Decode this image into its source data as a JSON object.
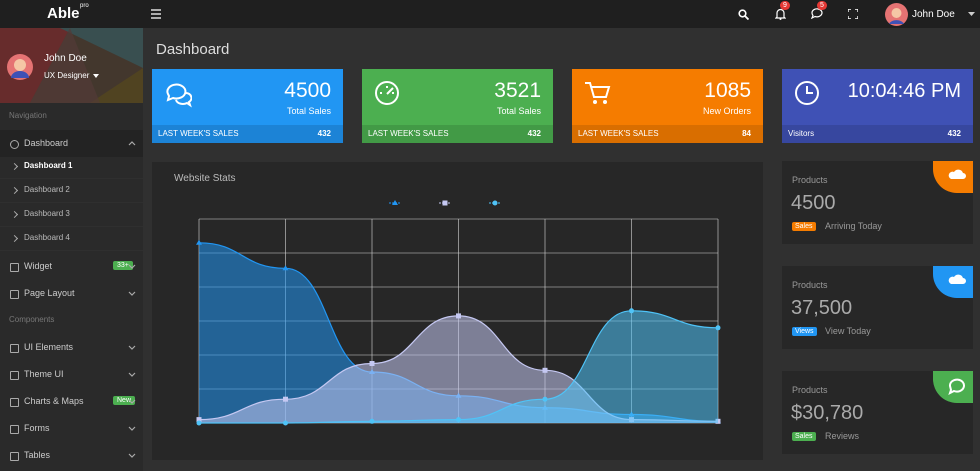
{
  "header": {
    "logo": "Able",
    "logo_sup": "pro",
    "bell_badge": 9,
    "chat_badge": 5,
    "user": "John Doe"
  },
  "sidebar": {
    "profile_name": "John Doe",
    "profile_role": "UX Designer",
    "sections": [
      {
        "title": "Navigation",
        "items": [
          {
            "label": "Dashboard",
            "children": [
              "Dashboard 1",
              "Dashboard 2",
              "Dashboard 3",
              "Dashboard 4"
            ]
          },
          {
            "label": "Widget",
            "badge": "33+"
          },
          {
            "label": "Page Layout"
          }
        ]
      },
      {
        "title": "Components",
        "items": [
          {
            "label": "UI Elements"
          },
          {
            "label": "Theme UI"
          },
          {
            "label": "Charts & Maps",
            "badge": "New"
          },
          {
            "label": "Forms"
          },
          {
            "label": "Tables"
          }
        ]
      }
    ]
  },
  "page_title": "Dashboard",
  "stat_cards": [
    {
      "value": 4500,
      "label": "Total Sales",
      "footer": "LAST WEEK'S SALES",
      "footer_value": 432,
      "color": "#2196f3",
      "footer_color": "#1c83d6"
    },
    {
      "value": 3521,
      "label": "Total Sales",
      "footer": "LAST WEEK'S SALES",
      "footer_value": 432,
      "color": "#4caf50",
      "footer_color": "#429a46"
    },
    {
      "value": 1085,
      "label": "New Orders",
      "footer": "LAST WEEK'S SALES",
      "footer_value": 84,
      "color": "#f57c00",
      "footer_color": "#d96e00"
    },
    {
      "value": "10:04:46 PM",
      "footer": "Visitors",
      "footer_value": 432,
      "color": "#3f51b5",
      "footer_color": "#37479f"
    }
  ],
  "chart_data": {
    "type": "area",
    "title": "Website Stats",
    "categories": [
      null,
      null,
      null,
      null,
      null,
      null,
      null
    ],
    "ylim": [
      0,
      120
    ],
    "yticks": [
      0,
      20,
      40,
      60,
      80,
      100,
      120
    ],
    "grid": true,
    "series": [
      {
        "color": "#2196f3",
        "marker": "triangle",
        "values": [
          106,
          91,
          30,
          16,
          9,
          5,
          1
        ]
      },
      {
        "color": "#c5c8f2",
        "marker": "square",
        "values": [
          2,
          14,
          35,
          63,
          31,
          2,
          1
        ]
      },
      {
        "color": "#4fc3f7",
        "marker": "circle",
        "values": [
          0,
          0,
          1,
          2,
          14,
          66,
          56
        ]
      }
    ]
  },
  "product_cards": [
    {
      "label": "Products",
      "value": 4500,
      "badge": "Sales",
      "note": "Arriving Today",
      "color": "#f57c00",
      "badge_color": "#f57c00"
    },
    {
      "label": "Products",
      "value": "37,500",
      "badge": "Views",
      "note": "View Today",
      "color": "#2196f3",
      "badge_color": "#2196f3"
    },
    {
      "label": "Products",
      "value": "$30,780",
      "badge": "Sales",
      "note": "Reviews",
      "color": "#4caf50",
      "badge_color": "#4caf50"
    }
  ]
}
